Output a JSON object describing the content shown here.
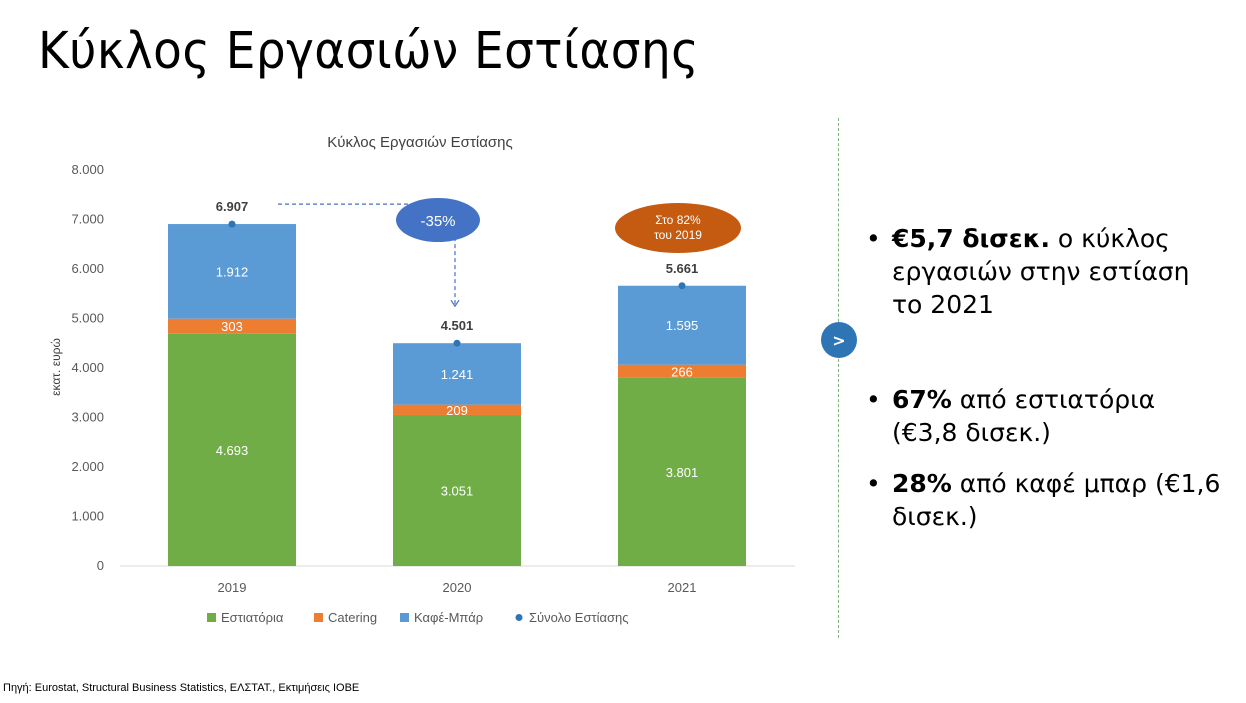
{
  "page": {
    "title": "Κύκλος Εργασιών Εστίασης",
    "source": "Πηγή: Eurostat, Structural Business Statistics, ΕΛΣΤΑΤ., Εκτιμήσεις ΙΟΒΕ",
    "next_label": ">"
  },
  "bullets": [
    {
      "bold": "€5,7 δισεκ.",
      "text": " ο κύκλος εργασιών στην εστίαση το 2021"
    },
    {
      "bold": "67%",
      "text": " από εστιατόρια (€3,8 δισεκ.)"
    },
    {
      "bold": "28%",
      "text": " από καφέ μπαρ (€1,6 δισεκ.)"
    }
  ],
  "chart_data": {
    "type": "bar",
    "stacked": true,
    "title": "Κύκλος Εργασιών Εστίασης",
    "ylabel": "εκατ. ευρώ",
    "xlabel": "",
    "ylim": [
      0,
      8000
    ],
    "yticks": [
      0,
      1000,
      2000,
      3000,
      4000,
      5000,
      6000,
      7000,
      8000
    ],
    "ytick_labels": [
      "0",
      "1.000",
      "2.000",
      "3.000",
      "4.000",
      "5.000",
      "6.000",
      "7.000",
      "8.000"
    ],
    "grid": false,
    "legend_position": "bottom",
    "categories": [
      "2019",
      "2020",
      "2021"
    ],
    "series": [
      {
        "name": "Εστιατόρια",
        "color": "#70ad47",
        "values": [
          4693,
          3051,
          3801
        ],
        "labels": [
          "4.693",
          "3.051",
          "3.801"
        ]
      },
      {
        "name": "Catering",
        "color": "#ed7d31",
        "values": [
          303,
          209,
          266
        ],
        "labels": [
          "303",
          "209",
          "266"
        ]
      },
      {
        "name": "Καφέ-Μπάρ",
        "color": "#5b9bd5",
        "values": [
          1912,
          1241,
          1595
        ],
        "labels": [
          "1.912",
          "1.241",
          "1.595"
        ]
      }
    ],
    "total_series": {
      "name": "Σύνολο Εστίασης",
      "color": "#2e75b6",
      "values": [
        6907,
        4501,
        5661
      ],
      "labels": [
        "6.907",
        "4.501",
        "5.661"
      ]
    },
    "annotations": [
      {
        "text": "-35%",
        "color": "#4472c4"
      },
      {
        "lines": [
          "Στο 82%",
          "του 2019"
        ],
        "color": "#c55a11"
      }
    ]
  }
}
